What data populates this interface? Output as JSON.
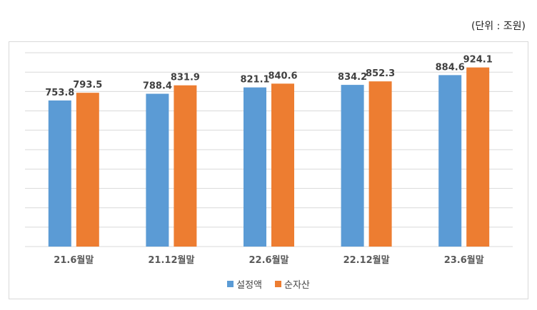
{
  "unit_label": "(단위 : 조원)",
  "colors": {
    "series_1": "#5b9bd5",
    "series_2": "#ed7d31",
    "gridline": "#d9d9d9",
    "axis_text": "#595959",
    "data_label": "#404040"
  },
  "chart_data": {
    "type": "bar",
    "title": "",
    "xlabel": "",
    "ylabel": "",
    "categories": [
      "21.6월말",
      "21.12월말",
      "22.6월말",
      "22.12월말",
      "23.6월말"
    ],
    "series": [
      {
        "name": "설정액",
        "values": [
          753.8,
          788.4,
          821.1,
          834.2,
          884.6
        ]
      },
      {
        "name": "순자산",
        "values": [
          793.5,
          831.9,
          840.6,
          852.3,
          924.1
        ]
      }
    ],
    "ylim": [
      0,
      1000
    ],
    "grid": true,
    "legend_position": "bottom",
    "data_labels": true
  }
}
